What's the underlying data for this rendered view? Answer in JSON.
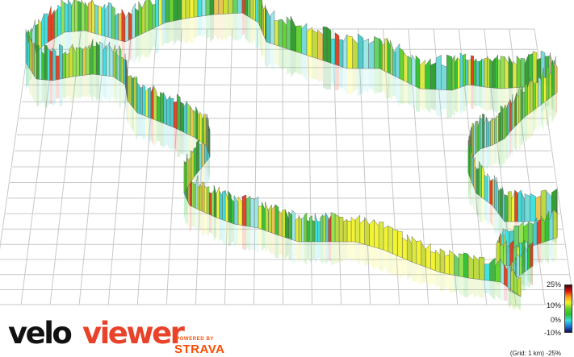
{
  "brand": {
    "logo_part1": "velo",
    "logo_part2": "viewer",
    "powered_by": "POWERED BY",
    "partner": "STRAVA"
  },
  "legend": {
    "labels": [
      "25%",
      "10%",
      "0%",
      "-10%",
      "-25%"
    ],
    "grid_note": "(Grid: 1 km)"
  },
  "colors": {
    "logo_accent": "#e8432a",
    "strava": "#fc4c02",
    "grid": "#c8c8c8",
    "gradient_scale": [
      "#3a0a0a",
      "#e01010",
      "#f6a21c",
      "#f2f22a",
      "#5ed12a",
      "#2cc02c",
      "#38e0e0",
      "#1a78d8",
      "#10105a"
    ]
  }
}
